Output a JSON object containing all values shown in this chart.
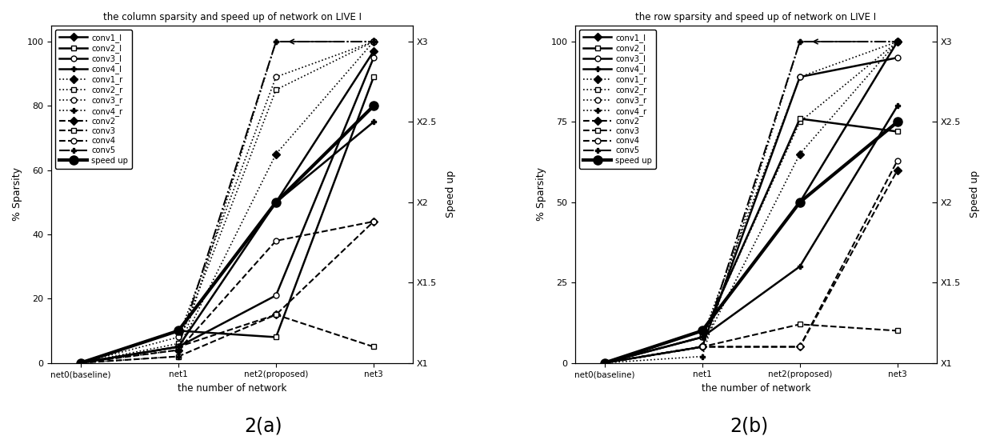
{
  "title_a": "the column sparsity and speed up of network on LIVE I",
  "title_b": "the row sparsity and speed up of network on LIVE I",
  "xlabel": "the number of network",
  "ylabel_left": "% Sparsity",
  "ylabel_right": "Speed up",
  "xtick_positions": [
    0,
    1,
    2,
    3
  ],
  "xticklabels": [
    "net0(baseline)",
    "net1",
    "net2(proposed)",
    "net3"
  ],
  "caption_a": "2(a)",
  "caption_b": "2(b)",
  "right_ytick_positions": [
    0,
    25,
    50,
    75,
    100
  ],
  "right_ytick_labels": [
    "X1",
    "X1.5",
    "X2",
    "X2.5",
    "X3"
  ],
  "chart_a": {
    "yticks": [
      0,
      20,
      40,
      60,
      80,
      100
    ],
    "conv1_l": [
      0,
      10,
      50,
      97
    ],
    "conv2_l": [
      0,
      10,
      8,
      89
    ],
    "conv3_l": [
      0,
      5,
      21,
      95
    ],
    "conv4_l": [
      0,
      5,
      50,
      75
    ],
    "conv1_r": [
      0,
      4,
      65,
      100
    ],
    "conv2_r": [
      0,
      6,
      85,
      100
    ],
    "conv3_r": [
      0,
      8,
      89,
      100
    ],
    "conv4_r": [
      0,
      2,
      100,
      100
    ],
    "conv2_d": [
      0,
      5,
      15,
      44
    ],
    "conv3_d": [
      0,
      2,
      15,
      5
    ],
    "conv4_d": [
      0,
      4,
      38,
      44
    ],
    "conv5_d": [
      0,
      5,
      100,
      100
    ],
    "speed_up": [
      0,
      10,
      50,
      80
    ]
  },
  "chart_b": {
    "yticks": [
      0,
      25,
      50,
      75,
      100
    ],
    "conv1_l": [
      0,
      10,
      50,
      100
    ],
    "conv2_l": [
      0,
      8,
      76,
      72
    ],
    "conv3_l": [
      0,
      5,
      89,
      95
    ],
    "conv4_l": [
      0,
      8,
      30,
      80
    ],
    "conv1_r": [
      0,
      5,
      65,
      100
    ],
    "conv2_r": [
      0,
      8,
      75,
      100
    ],
    "conv3_r": [
      0,
      8,
      89,
      100
    ],
    "conv4_r": [
      0,
      2,
      100,
      100
    ],
    "conv2_d": [
      0,
      5,
      5,
      60
    ],
    "conv3_d": [
      0,
      5,
      12,
      10
    ],
    "conv4_d": [
      0,
      5,
      5,
      63
    ],
    "conv5_d": [
      0,
      5,
      100,
      100
    ],
    "speed_up": [
      0,
      10,
      50,
      75
    ]
  }
}
